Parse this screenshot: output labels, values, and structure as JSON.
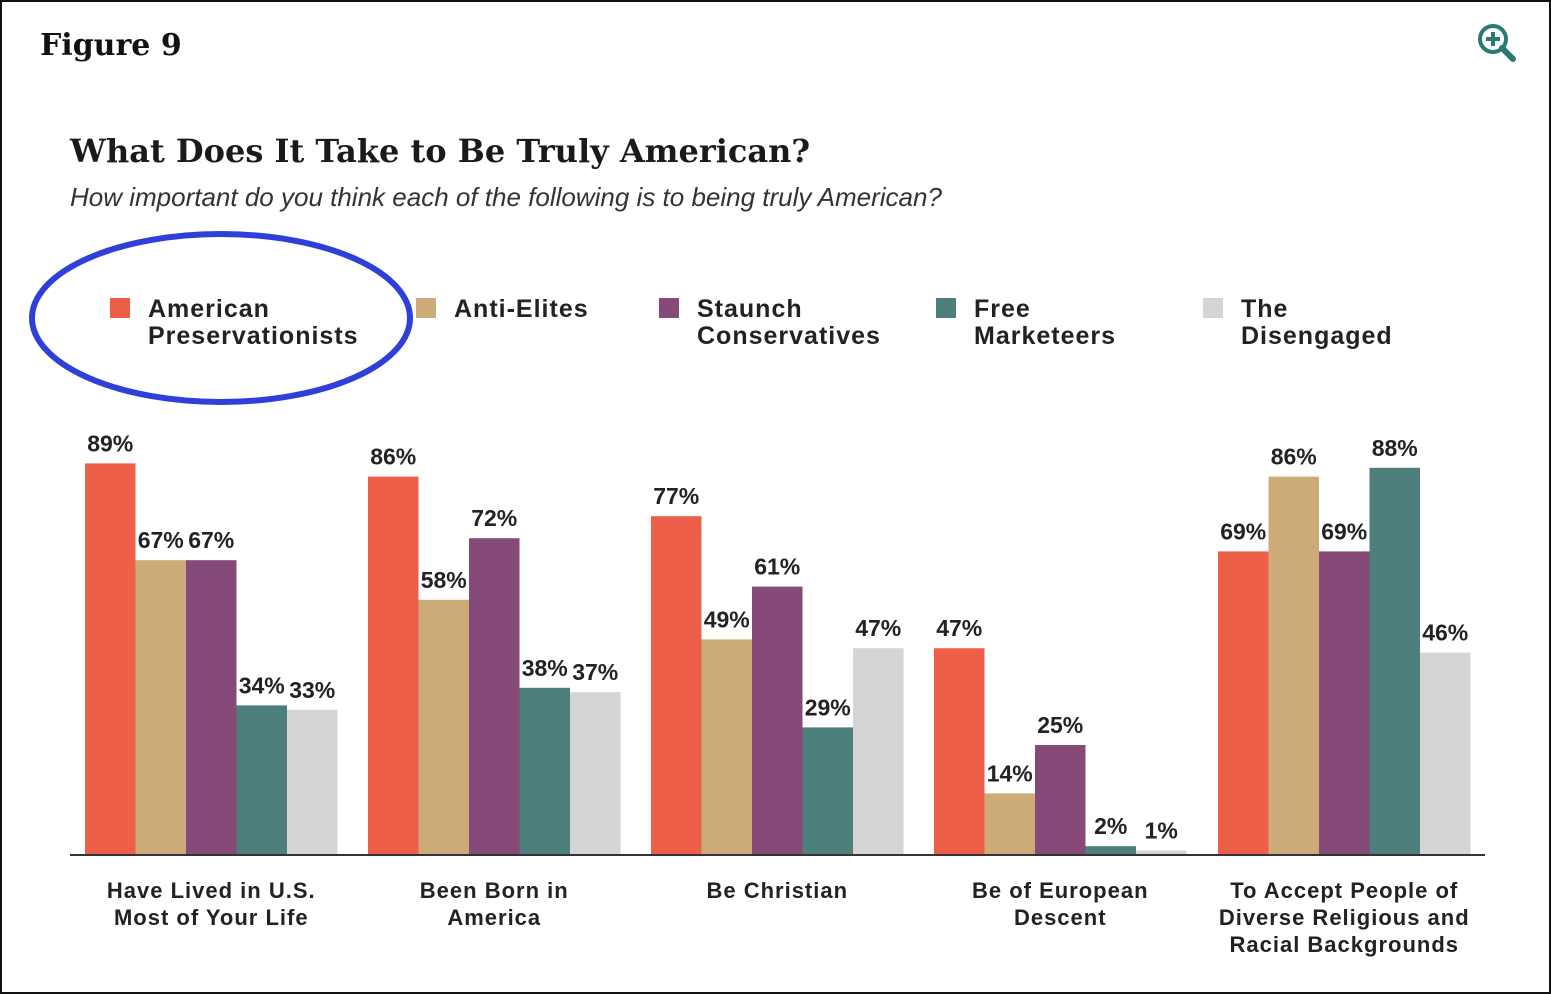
{
  "figure_label": "Figure 9",
  "icons": {
    "zoom": "zoom-in-icon"
  },
  "colors": {
    "accent": "#2a7a74",
    "highlight_ellipse": "#2f3fd9"
  },
  "chart_data": {
    "type": "bar",
    "title": "What Does It Take to Be Truly American?",
    "subtitle": "How important do you think each of the following is to being truly American?",
    "xlabel": "",
    "ylabel": "",
    "ylim": [
      0,
      100
    ],
    "grid": false,
    "legend_position": "top",
    "value_suffix": "%",
    "categories": [
      "Have Lived in U.S.\nMost of Your Life",
      "Been Born in\nAmerica",
      "Be Christian",
      "Be of European\nDescent",
      "To Accept People of\nDiverse Religious and\nRacial Backgrounds"
    ],
    "series": [
      {
        "name": "American\nPreservationists",
        "color": "#ee5f4a",
        "values": [
          89,
          86,
          77,
          47,
          69
        ]
      },
      {
        "name": "Anti-Elites",
        "color": "#cdab78",
        "values": [
          67,
          58,
          49,
          14,
          86
        ]
      },
      {
        "name": "Staunch\nConservatives",
        "color": "#864a78",
        "values": [
          67,
          72,
          61,
          25,
          69
        ]
      },
      {
        "name": "Free\nMarketeers",
        "color": "#4d7f7c",
        "values": [
          34,
          38,
          29,
          2,
          88
        ]
      },
      {
        "name": "The\nDisengaged",
        "color": "#d5d5d5",
        "values": [
          33,
          37,
          47,
          1,
          46
        ]
      }
    ],
    "highlighted_legend_entry": "American\nPreservationists"
  }
}
